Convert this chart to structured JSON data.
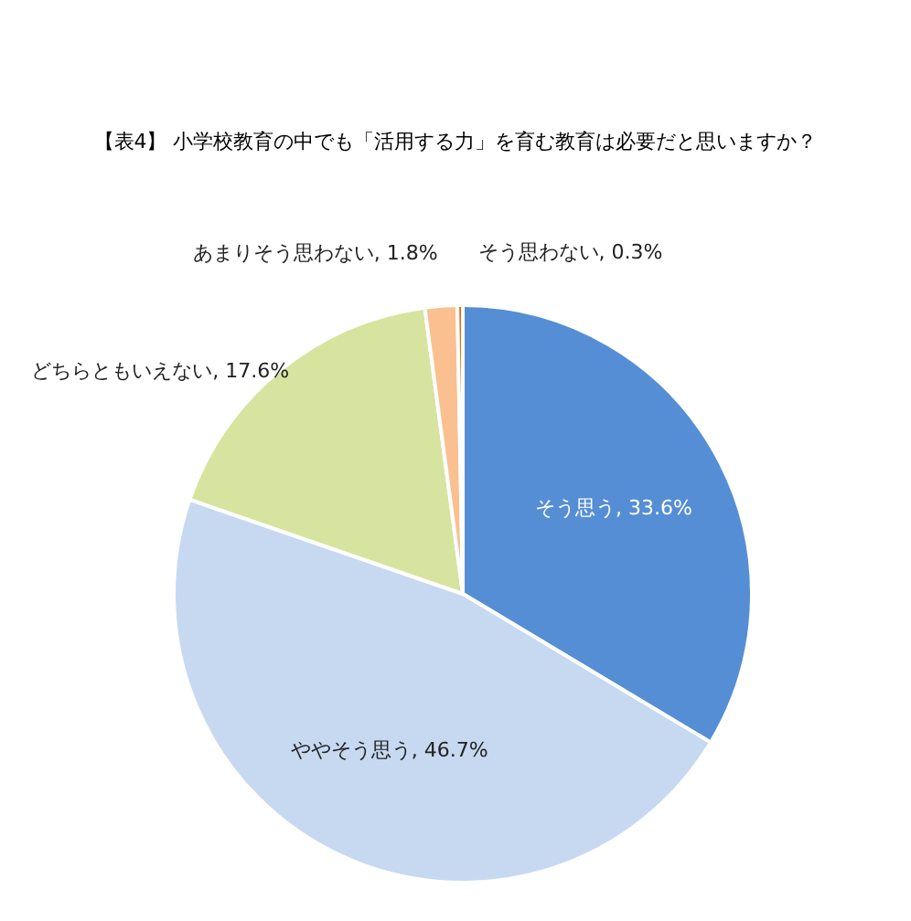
{
  "chart_data": {
    "type": "pie",
    "title": "【表4】 小学校教育の中でも「活用する力」を育む教育は必要だと思いますか？",
    "categories": [
      "そう思う",
      "ややそう思う",
      "どちらともいえない",
      "あまりそう思わない",
      "そう思わない"
    ],
    "values": [
      33.6,
      46.7,
      17.6,
      1.8,
      0.3
    ],
    "colors": [
      "#558ed5",
      "#c6d9f1",
      "#d7e4a0",
      "#fac090",
      "#e46c0a"
    ],
    "value_labels": [
      ", 33.6%",
      ", 46.7%",
      ", 17.6%",
      ", 1.8%",
      ", 0.3%"
    ],
    "legend": false
  }
}
